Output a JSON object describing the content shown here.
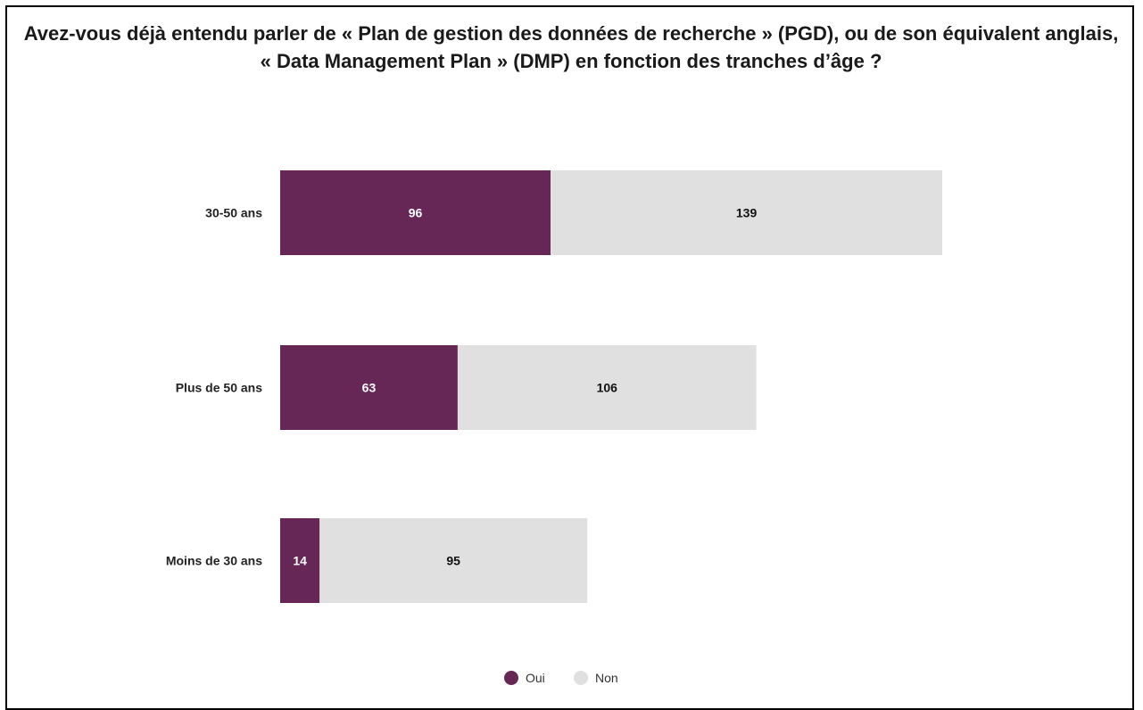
{
  "chart_data": {
    "type": "bar",
    "orientation": "horizontal",
    "stacked": true,
    "title": "Avez-vous déjà entendu parler de « Plan de gestion des données de recherche » (PGD), ou de son équivalent anglais, « Data Management Plan » (DMP) en fonction des tranches d’âge ?",
    "categories": [
      "30-50 ans",
      "Plus de 50 ans",
      "Moins de 30 ans"
    ],
    "series": [
      {
        "name": "Oui",
        "values": [
          96,
          63,
          14
        ],
        "color": "#662756",
        "label_color": "#ffffff"
      },
      {
        "name": "Non",
        "values": [
          139,
          106,
          95
        ],
        "color": "#e0e0e0",
        "label_color": "#111111"
      }
    ],
    "xlim": [
      0,
      235
    ],
    "grid": false,
    "legend_position": "bottom"
  }
}
